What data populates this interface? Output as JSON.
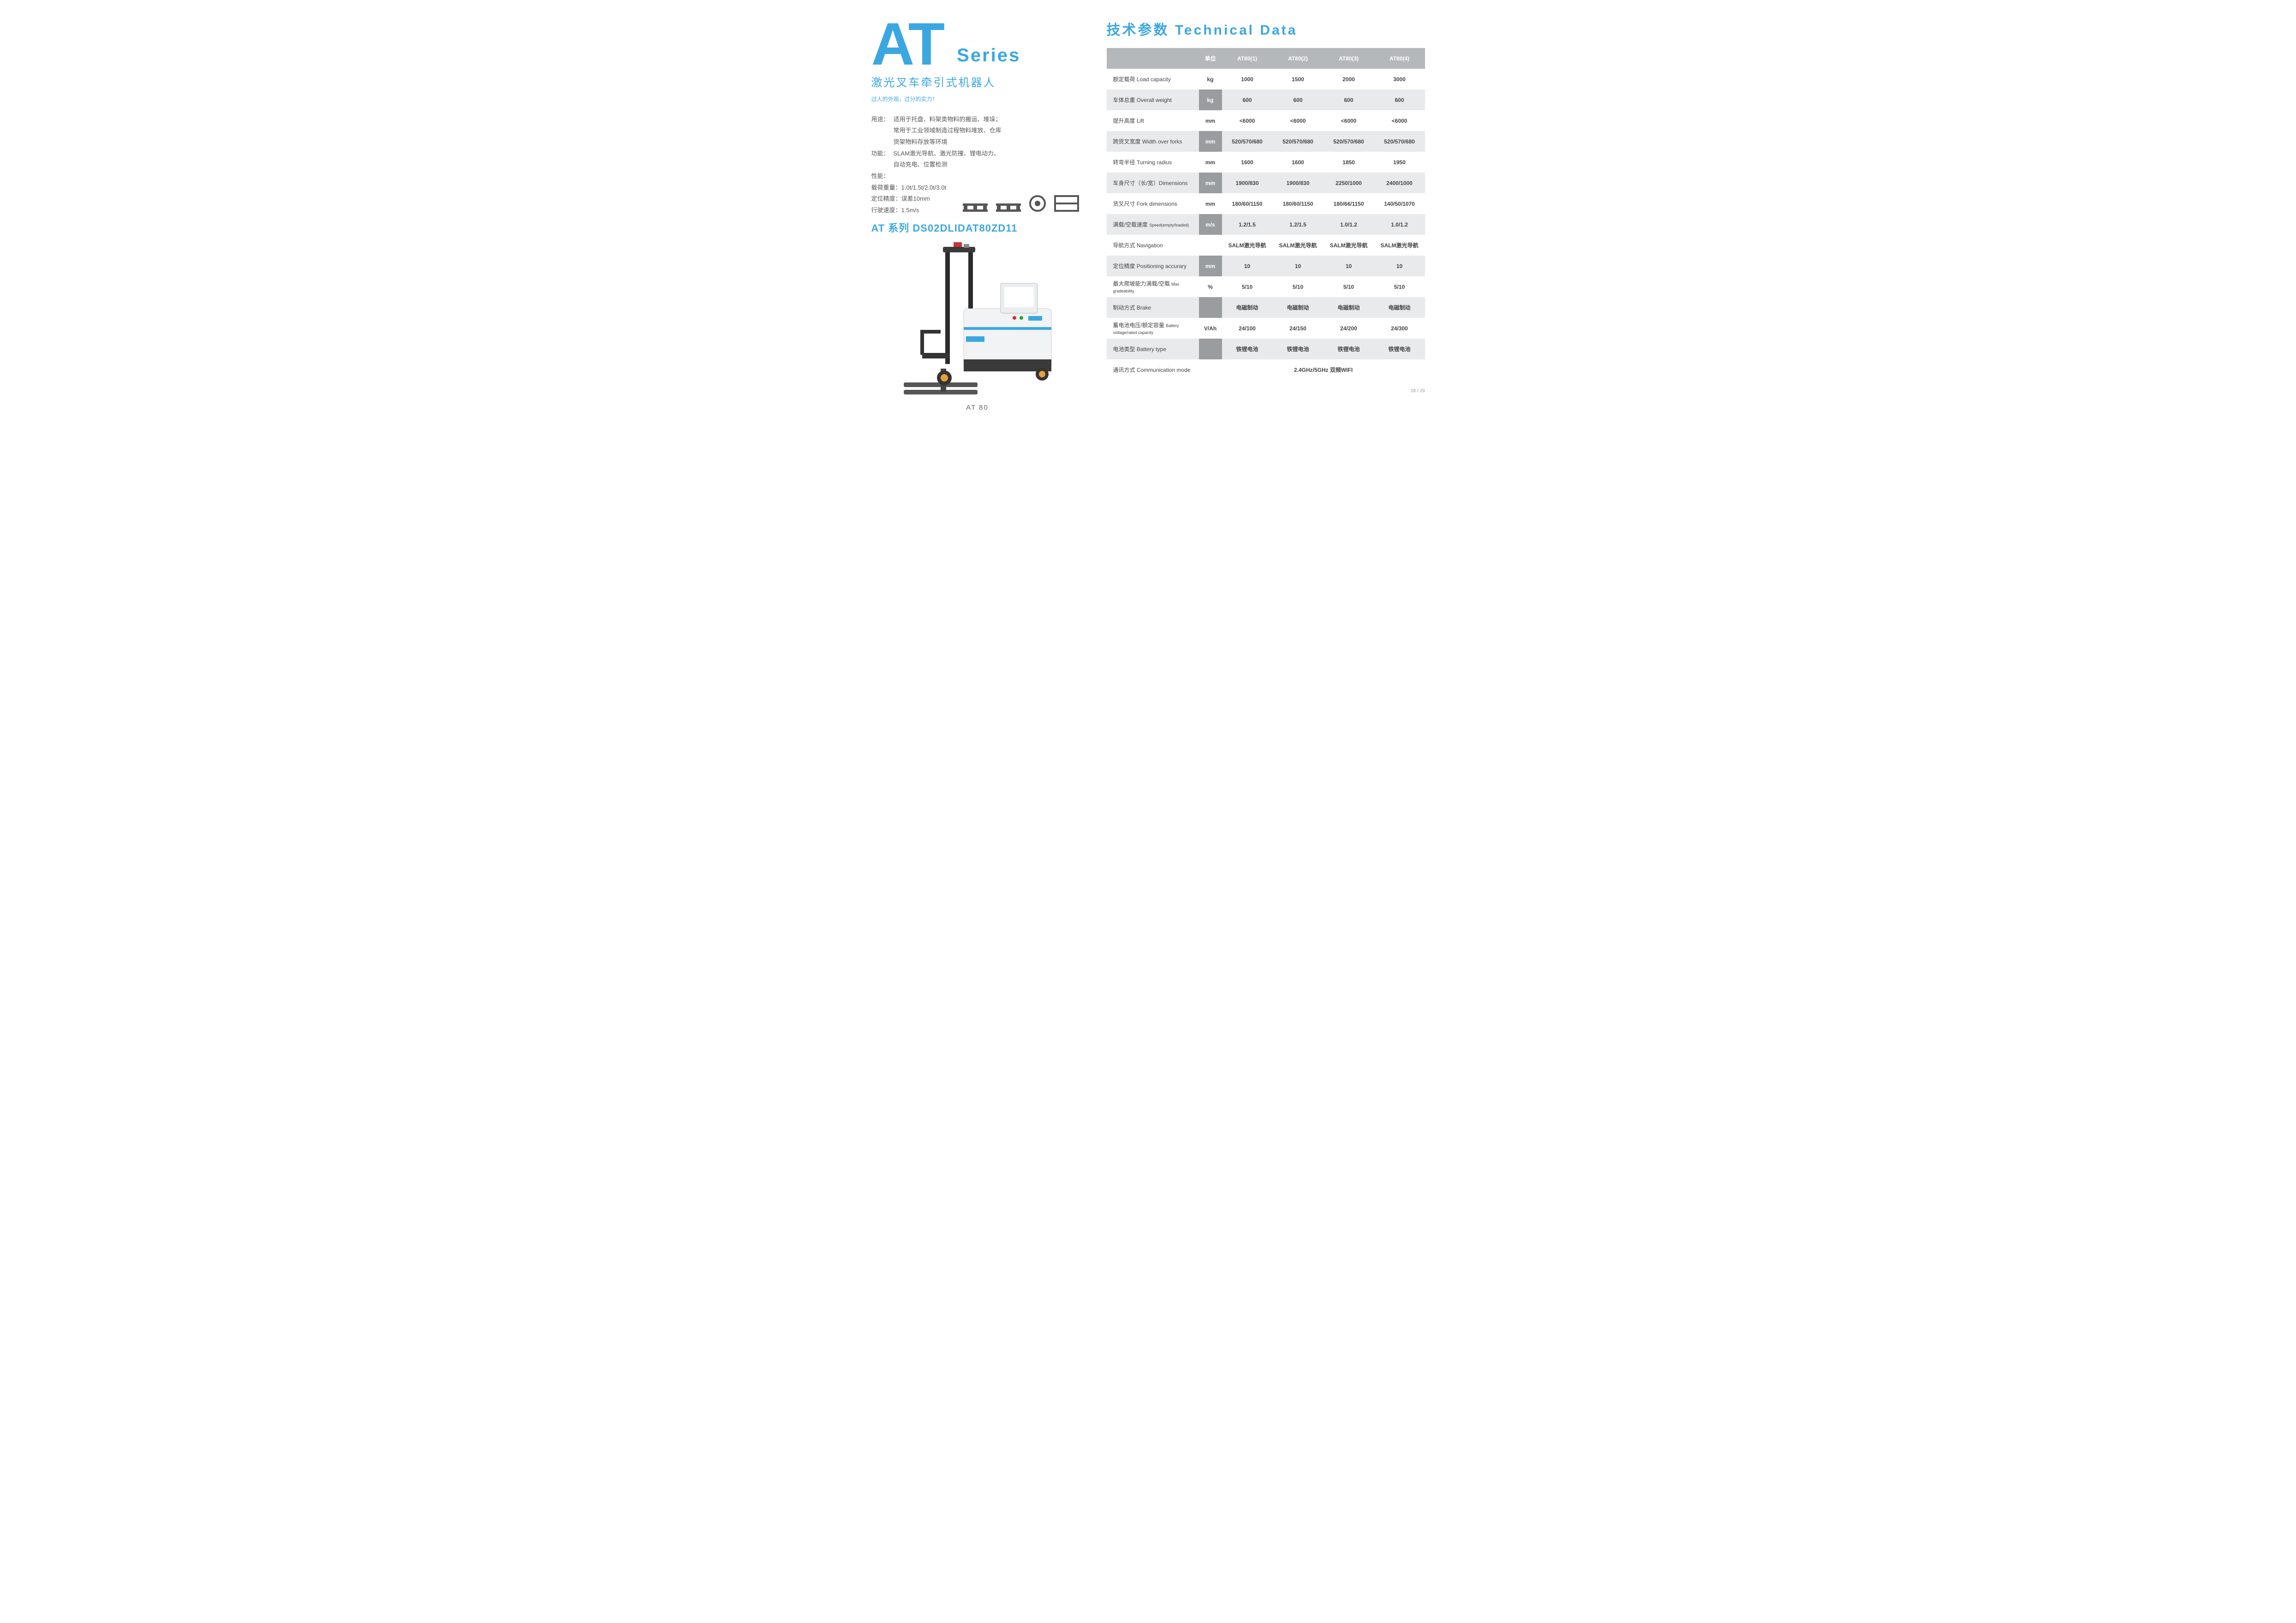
{
  "left": {
    "series_big": "AT",
    "series_word": "Series",
    "subtitle": "激光叉车牵引式机器人",
    "tagline": "过人的外观，过分的实力！",
    "usage_label": "用途：",
    "usage_line1": "适用于托盘、料架类物料的搬运、堆垛；",
    "usage_line2": "常用于工业领域制造过程物料堆放、仓库",
    "usage_line3": "货架物料存放等环境",
    "func_label": "功能：",
    "func_line1": "SLAM激光导航、激光防撞、锂电动力、",
    "func_line2": "自动充电、位置检测",
    "perf_label": "性能：",
    "load_label": "载荷重量：",
    "load_val": "1.0t/1.5t/2.0t/3.0t",
    "pos_label": "定位精度：",
    "pos_val": "误差10mm",
    "speed_label": "行驶速度：",
    "speed_val": "1.5m/s",
    "model_title": "AT 系列 DS02DLIDAT80ZD11",
    "caption": "AT 80"
  },
  "tech": {
    "title": "技术参数 Technical Data",
    "header_unit": "单位",
    "cols": [
      "AT80(1)",
      "AT80(2)",
      "AT80(3)",
      "AT80(4)"
    ],
    "rows": [
      {
        "label": "额定载荷 Load capacity",
        "unit": "kg",
        "boxed": false,
        "v": [
          "1000",
          "1500",
          "2000",
          "3000"
        ]
      },
      {
        "label": "车体总重 Overall weight",
        "unit": "kg",
        "boxed": true,
        "v": [
          "600",
          "600",
          "600",
          "600"
        ]
      },
      {
        "label": "提升高度 Lift",
        "unit": "mm",
        "boxed": false,
        "v": [
          "<6000",
          "<6000",
          "<6000",
          "<6000"
        ]
      },
      {
        "label": "跨货叉宽度 Width over forks",
        "unit": "mm",
        "boxed": true,
        "v": [
          "520/570/680",
          "520/570/680",
          "520/570/680",
          "520/570/680"
        ]
      },
      {
        "label": "转弯半径 Turning radius",
        "unit": "mm",
        "boxed": false,
        "v": [
          "1600",
          "1600",
          "1850",
          "1950"
        ]
      },
      {
        "label": "车身尺寸（长/宽）Dimensions",
        "unit": "mm",
        "boxed": true,
        "v": [
          "1900/830",
          "1900/830",
          "2250/1000",
          "2400/1000"
        ]
      },
      {
        "label": "货叉尺寸 Fork dimensions",
        "unit": "mm",
        "boxed": false,
        "v": [
          "180/60/1150",
          "180/60/1150",
          "180/66/1150",
          "140/50/1070"
        ]
      },
      {
        "label": "满载/空载速度 ",
        "sub": "Speed(empty/loaded)",
        "unit": "m/s",
        "boxed": true,
        "v": [
          "1.2/1.5",
          "1.2/1.5",
          "1.0/1.2",
          "1.0/1.2"
        ]
      },
      {
        "label": "导航方式 Navigation",
        "unit": "",
        "boxed": false,
        "v": [
          "SALM激光导航",
          "SALM激光导航",
          "SALM激光导航",
          "SALM激光导航"
        ]
      },
      {
        "label": "定位精度 Positioning accurary",
        "unit": "mm",
        "boxed": true,
        "v": [
          "10",
          "10",
          "10",
          "10"
        ]
      },
      {
        "label": "最大爬坡能力满载/空载 ",
        "sub": "Max gradeability",
        "unit": "%",
        "boxed": false,
        "v": [
          "5/10",
          "5/10",
          "5/10",
          "5/10"
        ]
      },
      {
        "label": "制动方式 Brake",
        "unit": "",
        "boxed": true,
        "v": [
          "电磁制动",
          "电磁制动",
          "电磁制动",
          "电磁制动"
        ]
      },
      {
        "label": "蓄电池电压/额定容量 ",
        "sub": "Battery voltage/rated capacity",
        "unit": "V/Ah",
        "boxed": false,
        "v": [
          "24/100",
          "24/150",
          "24/200",
          "24/300"
        ]
      },
      {
        "label": "电池类型 Battery type",
        "unit": "",
        "boxed": true,
        "v": [
          "铁锂电池",
          "铁锂电池",
          "铁锂电池",
          "铁锂电池"
        ]
      }
    ],
    "comm_label": "通讯方式 Communication mode",
    "comm_val": "2.4GHz/5GHz 双频WIFI"
  },
  "pagenum": "28 / 29",
  "colors": {
    "accent": "#3ba7e0",
    "row_dark": "#b5b8ba",
    "row_light": "#e9eaeb",
    "unit_box": "#9a9d9f"
  }
}
